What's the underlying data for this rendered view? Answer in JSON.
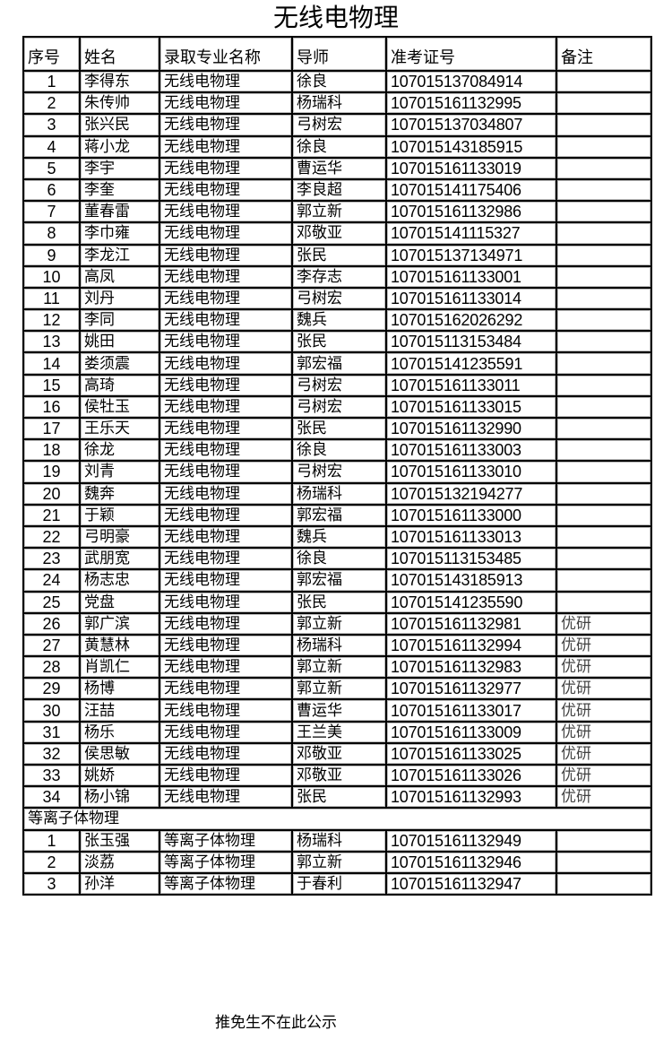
{
  "title": "无线电物理",
  "headers": [
    "序号",
    "姓名",
    "录取专业名称",
    "导师",
    "准考证号",
    "备注"
  ],
  "section1": {
    "rows": [
      [
        "1",
        "李得东",
        "无线电物理",
        "徐良",
        "107015137084914",
        ""
      ],
      [
        "2",
        "朱传帅",
        "无线电物理",
        "杨瑞科",
        "107015161132995",
        ""
      ],
      [
        "3",
        "张兴民",
        "无线电物理",
        "弓树宏",
        "107015137034807",
        ""
      ],
      [
        "4",
        "蒋小龙",
        "无线电物理",
        "徐良",
        "107015143185915",
        ""
      ],
      [
        "5",
        "李宇",
        "无线电物理",
        "曹运华",
        "107015161133019",
        ""
      ],
      [
        "6",
        "李奎",
        "无线电物理",
        "李良超",
        "107015141175406",
        ""
      ],
      [
        "7",
        "董春雷",
        "无线电物理",
        "郭立新",
        "107015161132986",
        ""
      ],
      [
        "8",
        "李巾雍",
        "无线电物理",
        "邓敬亚",
        "107015141115327",
        ""
      ],
      [
        "9",
        "李龙江",
        "无线电物理",
        "张民",
        "107015137134971",
        ""
      ],
      [
        "10",
        "高凤",
        "无线电物理",
        "李存志",
        "107015161133001",
        ""
      ],
      [
        "11",
        "刘丹",
        "无线电物理",
        "弓树宏",
        "107015161133014",
        ""
      ],
      [
        "12",
        "李同",
        "无线电物理",
        "魏兵",
        "107015162026292",
        ""
      ],
      [
        "13",
        "姚田",
        "无线电物理",
        "张民",
        "107015113153484",
        ""
      ],
      [
        "14",
        "娄须震",
        "无线电物理",
        "郭宏福",
        "107015141235591",
        ""
      ],
      [
        "15",
        "高琦",
        "无线电物理",
        "弓树宏",
        "107015161133011",
        ""
      ],
      [
        "16",
        "侯牡玉",
        "无线电物理",
        "弓树宏",
        "107015161133015",
        ""
      ],
      [
        "17",
        "王乐天",
        "无线电物理",
        "张民",
        "107015161132990",
        ""
      ],
      [
        "18",
        "徐龙",
        "无线电物理",
        "徐良",
        "107015161133003",
        ""
      ],
      [
        "19",
        "刘青",
        "无线电物理",
        "弓树宏",
        "107015161133010",
        ""
      ],
      [
        "20",
        "魏奔",
        "无线电物理",
        "杨瑞科",
        "107015132194277",
        ""
      ],
      [
        "21",
        "于颖",
        "无线电物理",
        "郭宏福",
        "107015161133000",
        ""
      ],
      [
        "22",
        "弓明豪",
        "无线电物理",
        "魏兵",
        "107015161133013",
        ""
      ],
      [
        "23",
        "武朋宽",
        "无线电物理",
        "徐良",
        "107015113153485",
        ""
      ],
      [
        "24",
        "杨志忠",
        "无线电物理",
        "郭宏福",
        "107015143185913",
        ""
      ],
      [
        "25",
        "党盘",
        "无线电物理",
        "张民",
        "107015141235590",
        ""
      ],
      [
        "26",
        "郭广滨",
        "无线电物理",
        "郭立新",
        "107015161132981",
        "优研"
      ],
      [
        "27",
        "黄慧林",
        "无线电物理",
        "杨瑞科",
        "107015161132994",
        "优研"
      ],
      [
        "28",
        "肖凯仁",
        "无线电物理",
        "郭立新",
        "107015161132983",
        "优研"
      ],
      [
        "29",
        "杨博",
        "无线电物理",
        "郭立新",
        "107015161132977",
        "优研"
      ],
      [
        "30",
        "汪喆",
        "无线电物理",
        "曹运华",
        "107015161133017",
        "优研"
      ],
      [
        "31",
        "杨乐",
        "无线电物理",
        "王兰美",
        "107015161133009",
        "优研"
      ],
      [
        "32",
        "侯思敏",
        "无线电物理",
        "邓敬亚",
        "107015161133025",
        "优研"
      ],
      [
        "33",
        "姚娇",
        "无线电物理",
        "邓敬亚",
        "107015161133026",
        "优研"
      ],
      [
        "34",
        "杨小锦",
        "无线电物理",
        "张民",
        "107015161132993",
        "优研"
      ]
    ]
  },
  "section2": {
    "label": "等离子体物理",
    "rows": [
      [
        "1",
        "张玉强",
        "等离子体物理",
        "杨瑞科",
        "107015161132949",
        ""
      ],
      [
        "2",
        "淡荔",
        "等离子体物理",
        "郭立新",
        "107015161132946",
        ""
      ],
      [
        "3",
        "孙洋",
        "等离子体物理",
        "于春利",
        "107015161132947",
        ""
      ]
    ]
  },
  "footer": "推免生不在此公示"
}
